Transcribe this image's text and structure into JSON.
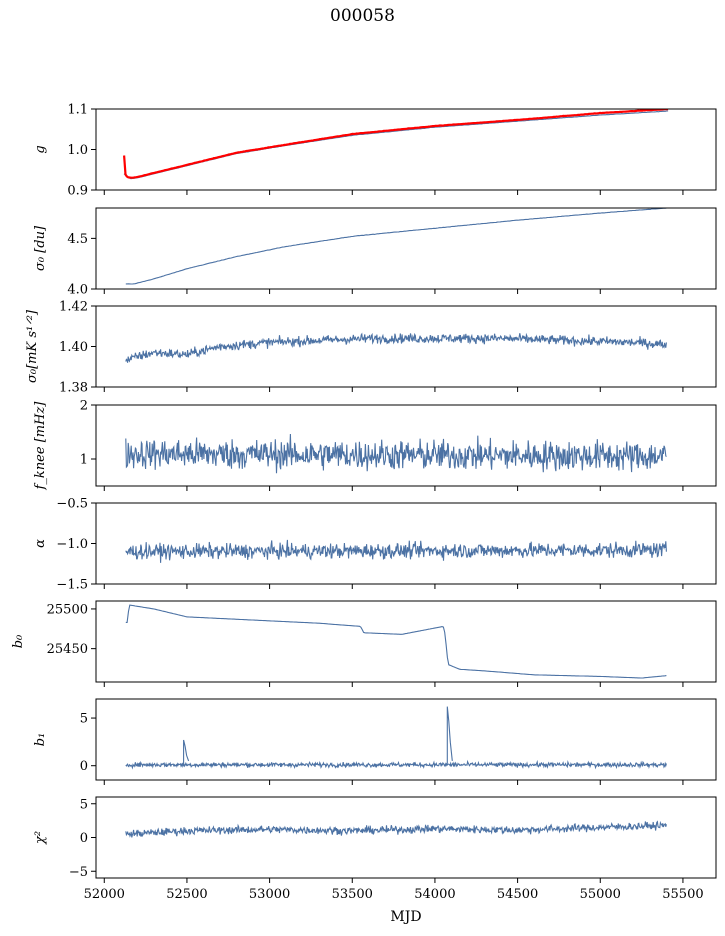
{
  "title": "000058",
  "xlabel": "MJD",
  "x_ticks": [
    52000,
    52500,
    53000,
    53500,
    54000,
    54500,
    55000,
    55500
  ],
  "xlim": [
    51950,
    55700
  ],
  "line_color": "#4c72a4",
  "fit_color": "#ff0000",
  "chart_data": [
    {
      "type": "line",
      "ylabel": "g",
      "ylim": [
        0.9,
        1.1
      ],
      "yticks": [
        0.9,
        1.0,
        1.1
      ],
      "series": [
        {
          "x": [
            52120,
            52140,
            52160,
            52200,
            52300,
            52500,
            52800,
            53100,
            53500,
            54000,
            54500,
            55000,
            55410
          ],
          "y": [
            0.94,
            0.932,
            0.928,
            0.93,
            0.94,
            0.96,
            0.99,
            1.01,
            1.035,
            1.055,
            1.07,
            1.085,
            1.095
          ]
        },
        {
          "name": "",
          "color_key": "fit",
          "x": [
            52120,
            52125,
            52130,
            52140,
            52160,
            52200,
            52300,
            52500,
            52800,
            53100,
            53500,
            54000,
            54500,
            55000,
            55410
          ],
          "y": [
            0.985,
            0.945,
            0.935,
            0.932,
            0.93,
            0.932,
            0.942,
            0.962,
            0.992,
            1.012,
            1.038,
            1.058,
            1.073,
            1.09,
            1.1
          ]
        }
      ]
    },
    {
      "type": "line",
      "ylabel": "σ0 [du]",
      "ylim": [
        4.0,
        4.8
      ],
      "yticks": [
        4.0,
        4.5
      ],
      "series": [
        {
          "x": [
            52130,
            52180,
            52300,
            52500,
            52800,
            53100,
            53500,
            54000,
            54500,
            55000,
            55400
          ],
          "y": [
            4.05,
            4.05,
            4.1,
            4.2,
            4.32,
            4.42,
            4.52,
            4.6,
            4.68,
            4.75,
            4.8
          ]
        }
      ]
    },
    {
      "type": "line",
      "ylabel": "σ0[mK s^1/2]",
      "ylim": [
        1.38,
        1.42
      ],
      "yticks": [
        1.38,
        1.4,
        1.42
      ],
      "series": [
        {
          "x": [
            52130,
            52200,
            52300,
            52500,
            52700,
            53000,
            53300,
            53600,
            54000,
            54400,
            54800,
            55200,
            55400
          ],
          "y": [
            1.393,
            1.395,
            1.397,
            1.396,
            1.4,
            1.402,
            1.403,
            1.404,
            1.404,
            1.404,
            1.403,
            1.402,
            1.401
          ],
          "noise": 0.0025
        }
      ]
    },
    {
      "type": "line",
      "ylabel": "f_knee [mHz]",
      "ylim": [
        0.5,
        2.0
      ],
      "yticks": [
        1,
        2
      ],
      "series": [
        {
          "x": [
            52130,
            55400
          ],
          "y": [
            1.1,
            1.05
          ],
          "noise": 0.3
        }
      ]
    },
    {
      "type": "line",
      "ylabel": "α",
      "ylim": [
        -1.5,
        -0.5
      ],
      "yticks": [
        -1.5,
        -1.0,
        -0.5
      ],
      "series": [
        {
          "x": [
            52130,
            55400
          ],
          "y": [
            -1.1,
            -1.08
          ],
          "noise": 0.1
        }
      ]
    },
    {
      "type": "line",
      "ylabel": "b0",
      "ylim": [
        25408,
        25510
      ],
      "yticks": [
        25450,
        25500
      ],
      "series": [
        {
          "x": [
            52130,
            52140,
            52150,
            52300,
            52500,
            52700,
            53000,
            53300,
            53550,
            53570,
            53800,
            54050,
            54060,
            54080,
            54150,
            54300,
            54600,
            55000,
            55250,
            55400
          ],
          "y": [
            25483,
            25483,
            25505,
            25500,
            25490,
            25488,
            25485,
            25482,
            25478,
            25470,
            25468,
            25478,
            25470,
            25430,
            25424,
            25422,
            25417,
            25415,
            25413,
            25416
          ]
        }
      ]
    },
    {
      "type": "line",
      "ylabel": "b1",
      "ylim": [
        -1.5,
        7
      ],
      "yticks": [
        0,
        5
      ],
      "series": [
        {
          "x": [
            52130,
            55400
          ],
          "y": [
            0.1,
            0.1
          ],
          "noise": 0.25
        }
      ],
      "annotations": [
        {
          "x": 52480,
          "y": 2.7
        },
        {
          "x": 54075,
          "y": 6.2
        }
      ]
    },
    {
      "type": "line",
      "ylabel": "χ²",
      "ylim": [
        -6,
        6
      ],
      "yticks": [
        -5,
        0,
        5
      ],
      "series": [
        {
          "x": [
            52130,
            52500,
            53000,
            53500,
            54000,
            54500,
            55000,
            55400
          ],
          "y": [
            0.5,
            1.0,
            1.2,
            1.0,
            1.3,
            1.1,
            1.5,
            1.8
          ],
          "noise": 0.6
        }
      ]
    }
  ]
}
